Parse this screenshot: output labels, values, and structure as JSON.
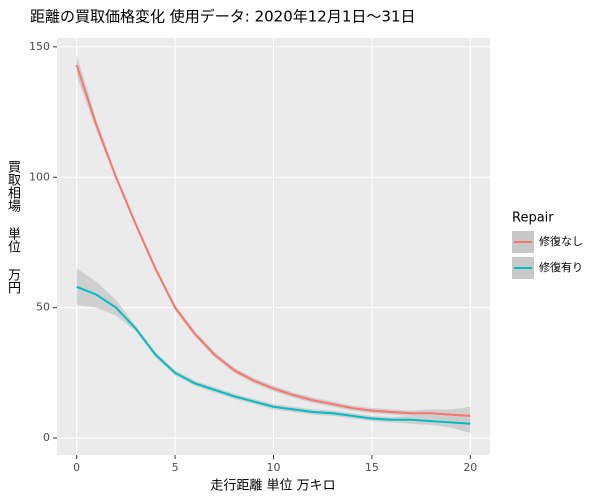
{
  "chart_data": {
    "type": "line",
    "title": "距離の買取価格変化 使用データ: 2020年12月1日～31日",
    "x_label": "走行距離 単位 万キロ",
    "y_label": "買取相場 単位 万円",
    "legend_title": "Repair",
    "x": [
      0,
      1,
      2,
      3,
      4,
      5,
      6,
      7,
      8,
      9,
      10,
      11,
      12,
      13,
      14,
      15,
      16,
      17,
      18,
      19,
      20
    ],
    "series": [
      {
        "name": "修復なし",
        "color": "#F8766D",
        "values": [
          143,
          120,
          100,
          82,
          65,
          50,
          40,
          32,
          26,
          22,
          19,
          16.5,
          14.5,
          13,
          11.5,
          10.5,
          10,
          9.5,
          9.5,
          9,
          8.5
        ],
        "lower": [
          139,
          118,
          99,
          81,
          64,
          49,
          39,
          31,
          25,
          21,
          18,
          15.5,
          13.5,
          12,
          10.5,
          9.5,
          9,
          8.5,
          8,
          7,
          5
        ],
        "upper": [
          147,
          122,
          101,
          83,
          66,
          51,
          41,
          33,
          27,
          23,
          20,
          17.5,
          15.5,
          14,
          12.5,
          11.5,
          11,
          10.5,
          11,
          11,
          12
        ]
      },
      {
        "name": "修復有り",
        "color": "#00BFC4",
        "values": [
          58,
          55,
          50,
          42,
          32,
          25,
          21,
          18.5,
          16,
          14,
          12,
          11,
          10,
          9.5,
          8.5,
          7.5,
          7,
          7,
          6.5,
          6,
          5.5
        ],
        "lower": [
          51,
          50,
          47,
          41,
          31,
          24,
          20,
          17.5,
          15,
          13,
          11,
          10,
          9,
          8.5,
          7.5,
          6.5,
          6,
          5.5,
          5,
          4,
          2
        ],
        "upper": [
          65,
          60,
          53,
          43,
          33,
          26,
          22,
          19.5,
          17,
          15,
          13,
          12,
          11,
          10.5,
          9.5,
          8.5,
          8,
          8.5,
          8,
          8,
          9
        ]
      }
    ],
    "band_color": "#C8C8C8",
    "xlim": [
      -1,
      21
    ],
    "xticks": [
      0,
      5,
      10,
      15,
      20
    ],
    "ylim": [
      -6.5,
      153.4
    ],
    "yticks": [
      0,
      50,
      100,
      150
    ],
    "grid": true
  }
}
